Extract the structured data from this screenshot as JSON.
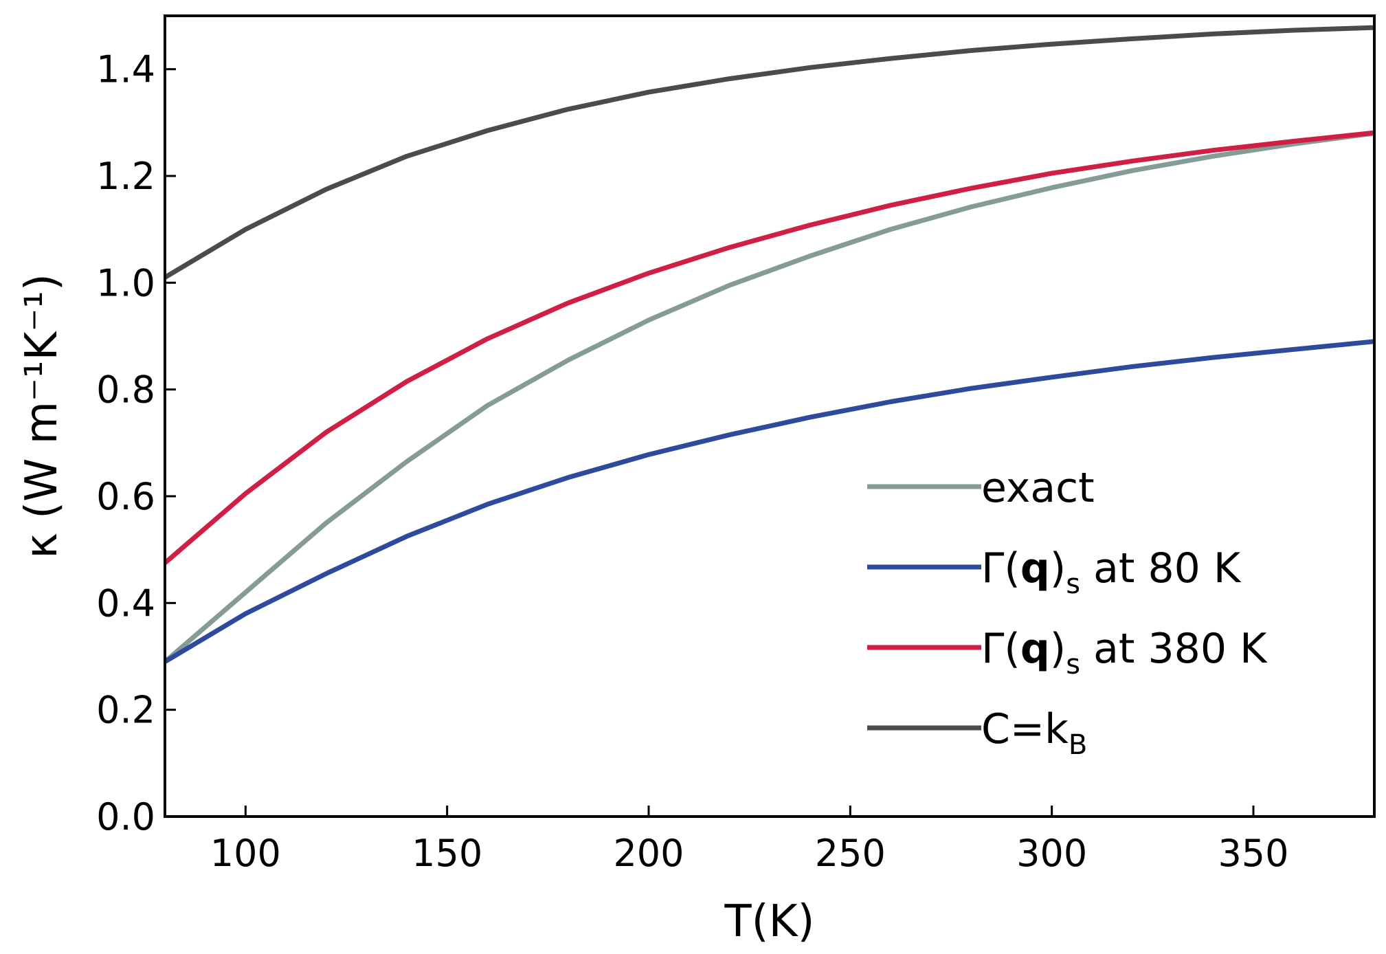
{
  "chart_data": {
    "type": "line",
    "xlabel": "T(K)",
    "ylabel": "κ (W m⁻¹K⁻¹)",
    "xlim": [
      80,
      380
    ],
    "ylim": [
      0.0,
      1.5
    ],
    "xticks": [
      100,
      150,
      200,
      250,
      300,
      350
    ],
    "xtick_labels": [
      "100",
      "150",
      "200",
      "250",
      "300",
      "350"
    ],
    "yticks": [
      0.0,
      0.2,
      0.4,
      0.6,
      0.8,
      1.0,
      1.2,
      1.4
    ],
    "ytick_labels": [
      "0.0",
      "0.2",
      "0.4",
      "0.6",
      "0.8",
      "1.0",
      "1.2",
      "1.4"
    ],
    "grid": false,
    "legend_position": "lower-right",
    "x": [
      80,
      100,
      120,
      140,
      160,
      180,
      200,
      220,
      240,
      260,
      280,
      300,
      320,
      340,
      360,
      380
    ],
    "series": [
      {
        "name": "exact",
        "color": "#849b98",
        "values": [
          0.29,
          0.42,
          0.55,
          0.665,
          0.77,
          0.855,
          0.93,
          0.995,
          1.05,
          1.1,
          1.142,
          1.178,
          1.21,
          1.237,
          1.26,
          1.28
        ]
      },
      {
        "name": "Γ(q)s at 80 K",
        "color": "#2e4a9c",
        "values": [
          0.29,
          0.38,
          0.455,
          0.525,
          0.585,
          0.635,
          0.678,
          0.715,
          0.748,
          0.777,
          0.802,
          0.823,
          0.843,
          0.86,
          0.875,
          0.89
        ]
      },
      {
        "name": "Γ(q)s at 380 K",
        "color": "#cf1f45",
        "values": [
          0.475,
          0.605,
          0.72,
          0.815,
          0.895,
          0.962,
          1.018,
          1.066,
          1.108,
          1.145,
          1.177,
          1.205,
          1.228,
          1.248,
          1.265,
          1.281
        ]
      },
      {
        "name": "C=kB",
        "color": "#4b4b4b",
        "values": [
          1.01,
          1.1,
          1.175,
          1.237,
          1.285,
          1.325,
          1.357,
          1.382,
          1.403,
          1.42,
          1.435,
          1.447,
          1.457,
          1.466,
          1.473,
          1.478
        ]
      }
    ],
    "legend": [
      {
        "label": "exact",
        "color": "#849b98"
      },
      {
        "label": "Γ(q)s at 80 K",
        "label_main": "Γ(",
        "label_bold": "q",
        "label_close": ")",
        "label_sub": "s",
        "label_tail": " at 80 K",
        "color": "#2e4a9c"
      },
      {
        "label": "Γ(q)s at 380 K",
        "label_main": "Γ(",
        "label_bold": "q",
        "label_close": ")",
        "label_sub": "s",
        "label_tail": " at 380 K",
        "color": "#cf1f45"
      },
      {
        "label": "C=kB",
        "label_main": "C=k",
        "label_sub": "B",
        "color": "#4b4b4b"
      }
    ]
  }
}
